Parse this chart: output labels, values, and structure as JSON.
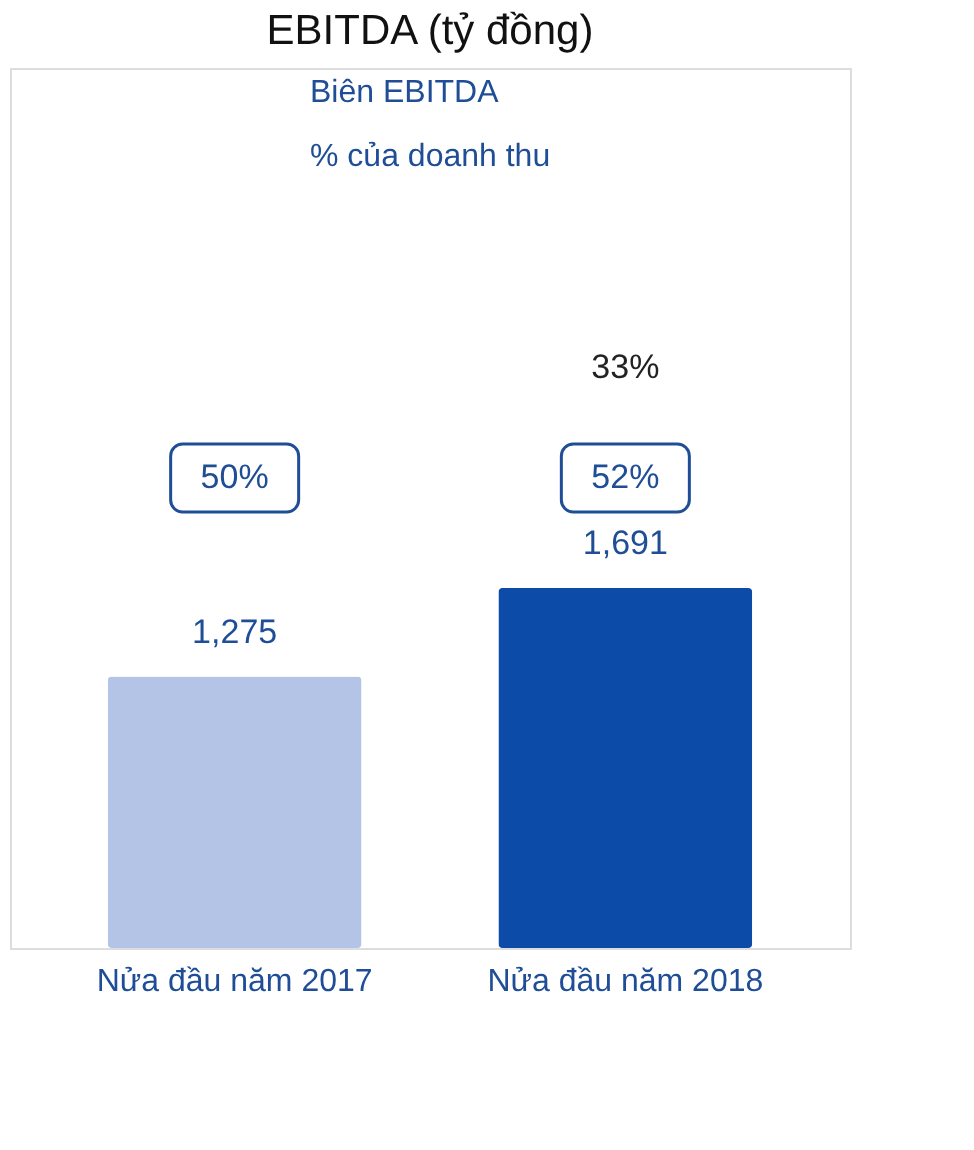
{
  "chart_data": {
    "type": "bar",
    "title": "EBITDA (tỷ đồng)",
    "categories": [
      "Nửa đầu năm 2017",
      "Nửa đầu năm 2018"
    ],
    "values": [
      1275,
      1691
    ],
    "value_labels": [
      "1,275",
      "1,691"
    ],
    "colors": [
      "#b3c4e6",
      "#0d4ba8"
    ],
    "annotations": [
      "Biên EBITDA",
      "% của doanh thu",
      "33%",
      "50%",
      "52%"
    ]
  }
}
